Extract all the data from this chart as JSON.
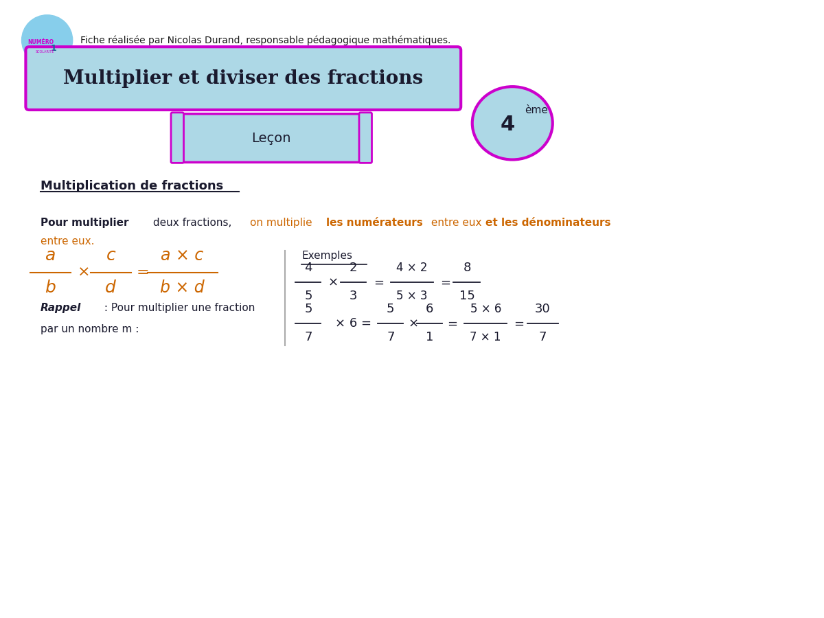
{
  "bg_color": "#ffffff",
  "title_box_text": "Multiplier et diviser des fractions",
  "title_box_bg": "#add8e6",
  "title_box_border": "#cc00cc",
  "lecon_text": "Leçon",
  "lecon_bg": "#add8e6",
  "lecon_border": "#cc00cc",
  "grade_text": "4",
  "grade_sup": "ème",
  "grade_bg": "#add8e6",
  "grade_border": "#cc00cc",
  "header_text": "Fiche réalisée par Nicolas Durand, responsable pédagogique mathématiques.",
  "section_title": "Multiplication de fractions",
  "exemples_label": "Exemples",
  "rappel_line1": "Rappel : Pour multiplier une fraction",
  "rappel_line2": "par un nombre m :",
  "orange_color": "#cc6600",
  "dark_color": "#1a1a2e",
  "formula_color": "#cc6600",
  "separator_color": "#aaaaaa",
  "underline_color": "#1a1a2e"
}
